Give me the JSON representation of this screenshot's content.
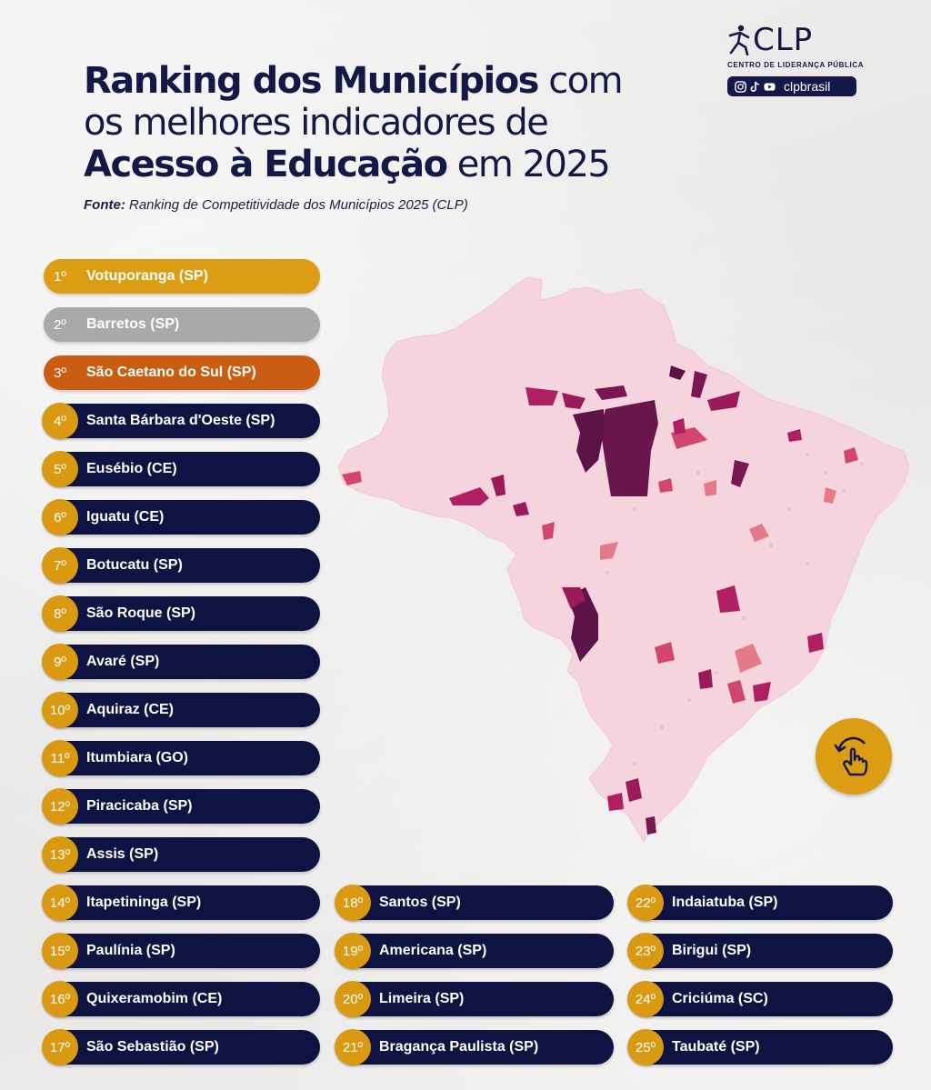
{
  "header": {
    "title_bold_1": "Ranking dos Municípios",
    "title_reg_1": " com",
    "title_reg_2": "os melhores indicadores de",
    "title_bold_3": "Acesso à Educação",
    "title_reg_3": " em 2025",
    "source_label": "Fonte:",
    "source_text": " Ranking de Competitividade dos Municípios 2025 (CLP)"
  },
  "logo": {
    "brand": "CLP",
    "subtitle": "CENTRO DE LIDERANÇA PÚBLICA",
    "handle": "clpbrasil",
    "icons": [
      "instagram-icon",
      "tiktok-icon",
      "youtube-icon"
    ]
  },
  "colors": {
    "navy": "#0f1342",
    "gold": "#dc9d13",
    "silver": "#a9a9a9",
    "bronze": "#c95d12",
    "map_base": "#f6d4dd",
    "map_dark": "#5c1448",
    "map_mid": "#b01e64",
    "map_light": "#e27a88"
  },
  "ranking": [
    {
      "rank": "1º",
      "name": "Votuporanga (SP)"
    },
    {
      "rank": "2º",
      "name": "Barretos (SP)"
    },
    {
      "rank": "3º",
      "name": "São Caetano do Sul (SP)"
    },
    {
      "rank": "4º",
      "name": "Santa Bárbara d'Oeste (SP)"
    },
    {
      "rank": "5º",
      "name": "Eusébio (CE)"
    },
    {
      "rank": "6º",
      "name": "Iguatu (CE)"
    },
    {
      "rank": "7º",
      "name": "Botucatu (SP)"
    },
    {
      "rank": "8º",
      "name": "São Roque (SP)"
    },
    {
      "rank": "9º",
      "name": "Avaré (SP)"
    },
    {
      "rank": "10º",
      "name": "Aquiraz (CE)"
    },
    {
      "rank": "11º",
      "name": "Itumbiara (GO)"
    },
    {
      "rank": "12º",
      "name": "Piracicaba (SP)"
    },
    {
      "rank": "13º",
      "name": "Assis (SP)"
    },
    {
      "rank": "14º",
      "name": "Itapetininga (SP)"
    },
    {
      "rank": "15º",
      "name": "Paulínia (SP)"
    },
    {
      "rank": "16º",
      "name": "Quixeramobim (CE)"
    },
    {
      "rank": "17º",
      "name": "São Sebastião (SP)"
    },
    {
      "rank": "18º",
      "name": "Santos (SP)"
    },
    {
      "rank": "19º",
      "name": "Americana (SP)"
    },
    {
      "rank": "20º",
      "name": "Limeira (SP)"
    },
    {
      "rank": "21º",
      "name": "Bragança Paulista (SP)"
    },
    {
      "rank": "22º",
      "name": "Indaiatuba (SP)"
    },
    {
      "rank": "23º",
      "name": "Birigui (SP)"
    },
    {
      "rank": "24º",
      "name": "Criciúma (SC)"
    },
    {
      "rank": "25º",
      "name": "Taubaté (SP)"
    }
  ],
  "map": {
    "icon": "brazil-municipalities-map",
    "interaction_icon": "swipe-hand-icon"
  }
}
